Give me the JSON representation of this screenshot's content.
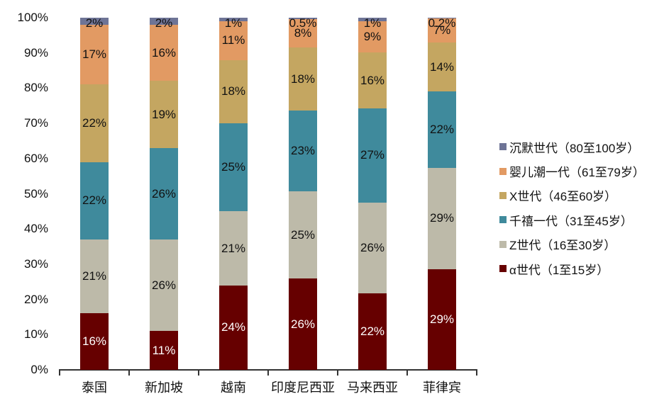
{
  "chart_data": {
    "type": "bar",
    "stacked": true,
    "percent_stacked": true,
    "title": "",
    "xlabel": "",
    "ylabel": "",
    "ylim": [
      0,
      100
    ],
    "yticks": [
      "0%",
      "10%",
      "20%",
      "30%",
      "40%",
      "50%",
      "60%",
      "70%",
      "80%",
      "90%",
      "100%"
    ],
    "categories": [
      "泰国",
      "新加坡",
      "越南",
      "印度尼西亚",
      "马来西亚",
      "菲律宾"
    ],
    "legend_position": "right",
    "grid": false,
    "series": [
      {
        "name": "α世代（1至15岁）",
        "color": "#660000",
        "label_color": "#ffffff",
        "values": [
          16,
          11,
          24,
          26,
          22,
          29
        ],
        "labels": [
          "16%",
          "11%",
          "24%",
          "26%",
          "22%",
          "29%"
        ]
      },
      {
        "name": "Z世代（16至30岁）",
        "color": "#BDBAA9",
        "label_color": "#111111",
        "values": [
          21,
          26,
          21,
          25,
          26,
          29
        ],
        "labels": [
          "21%",
          "26%",
          "21%",
          "25%",
          "26%",
          "29%"
        ]
      },
      {
        "name": "千禧一代（31至45岁）",
        "color": "#3F8A9C",
        "label_color": "#111111",
        "values": [
          22,
          26,
          25,
          23,
          27,
          22
        ],
        "labels": [
          "22%",
          "26%",
          "25%",
          "23%",
          "27%",
          "22%"
        ]
      },
      {
        "name": "X世代（46至60岁）",
        "color": "#C4A661",
        "label_color": "#111111",
        "values": [
          22,
          19,
          18,
          18,
          16,
          14
        ],
        "labels": [
          "22%",
          "19%",
          "18%",
          "18%",
          "16%",
          "14%"
        ]
      },
      {
        "name": "婴儿潮一代（61至79岁）",
        "color": "#E29A63",
        "label_color": "#111111",
        "values": [
          17,
          16,
          11,
          8,
          9,
          7
        ],
        "labels": [
          "17%",
          "16%",
          "11%",
          "8%",
          "9%",
          "7%"
        ]
      },
      {
        "name": "沉默世代（80至100岁）",
        "color": "#6E7496",
        "label_color": "#111111",
        "values": [
          2,
          2,
          1,
          0.5,
          1,
          0.2
        ],
        "labels": [
          "2%",
          "2%",
          "1%",
          "0.5%",
          "1%",
          "0.2%"
        ]
      }
    ]
  }
}
